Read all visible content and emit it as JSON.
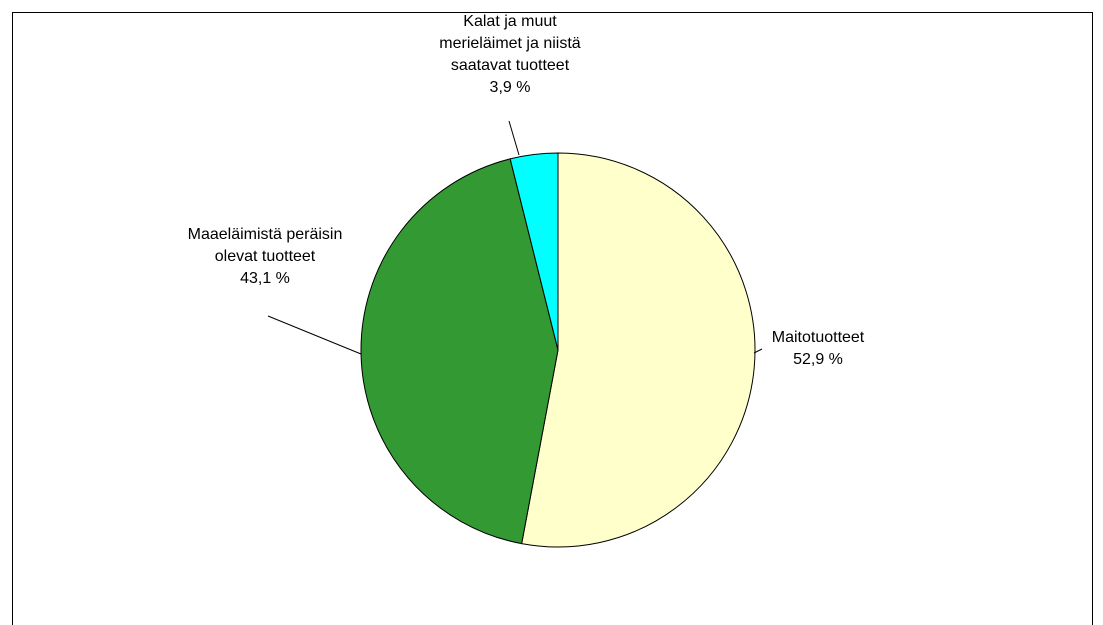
{
  "chart_data": {
    "type": "pie",
    "categories": [
      "Maitotuotteet",
      "Maaeläimistä peräisin olevat tuotteet",
      "Kalat ja muut merieläimet ja niistä saatavat tuotteet"
    ],
    "values": [
      52.9,
      43.1,
      3.9
    ],
    "value_labels": [
      "52,9 %",
      "43,1 %",
      "3,9 %"
    ],
    "colors": [
      "#FFFFCC",
      "#339933",
      "#00FFFF"
    ]
  }
}
